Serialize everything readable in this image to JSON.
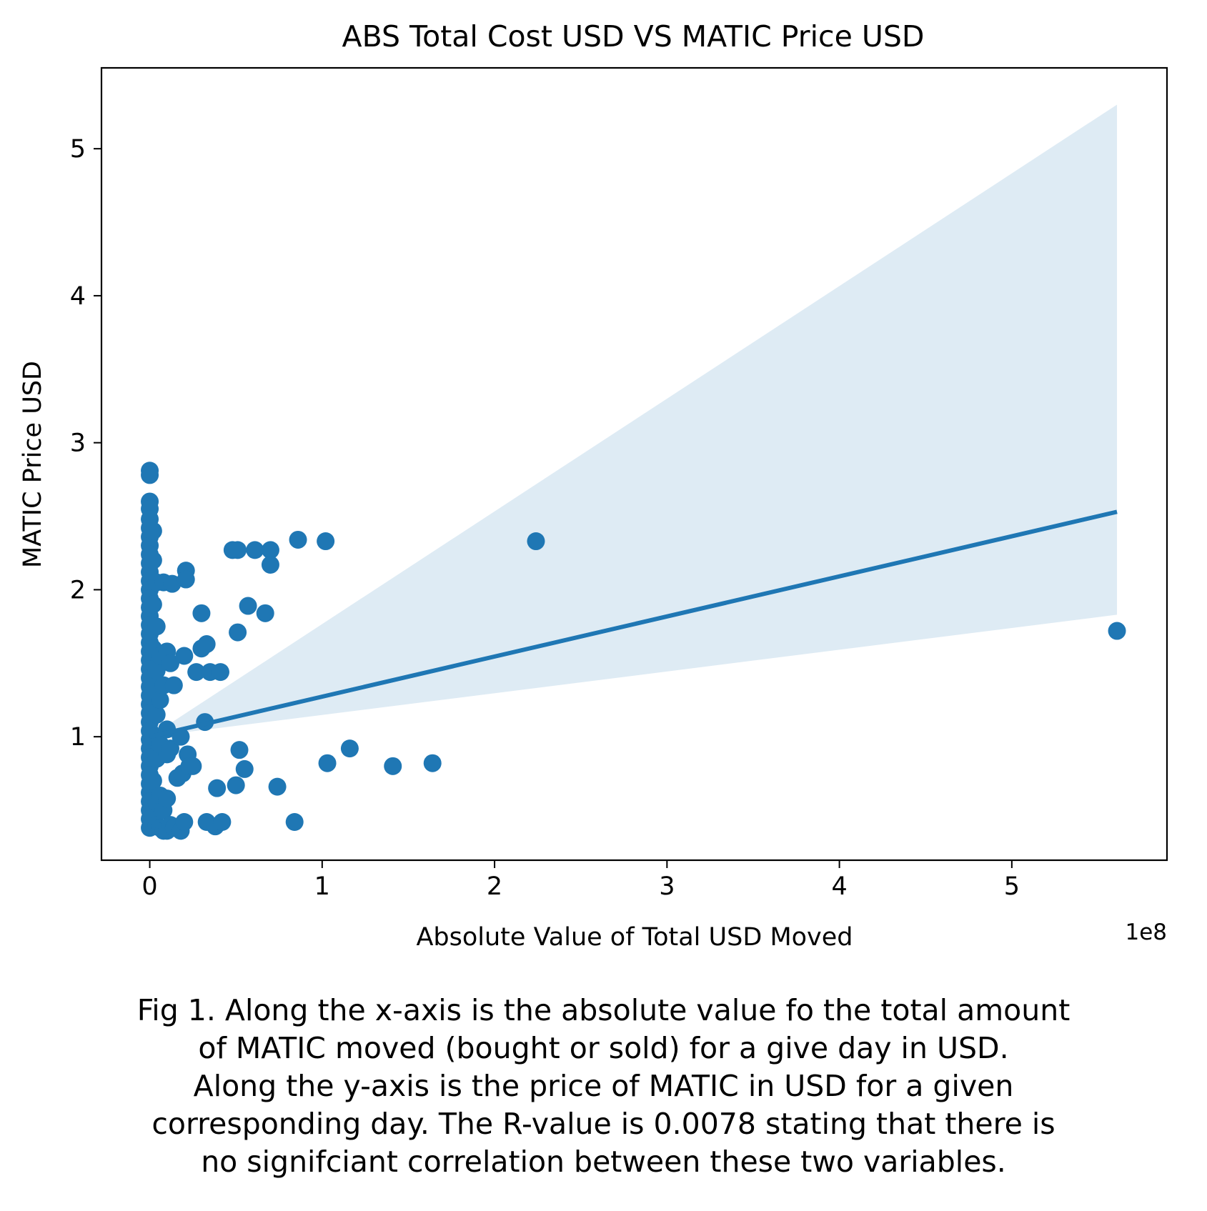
{
  "chart_data": {
    "type": "scatter",
    "title": "ABS Total Cost USD VS MATIC Price USD",
    "xlabel": "Absolute Value of Total USD Moved",
    "ylabel": "MATIC Price USD",
    "x_offset_label": "1e8",
    "x_scale": 100000000,
    "xlim": [
      -0.28,
      5.9
    ],
    "ylim": [
      0.16,
      5.55
    ],
    "x_ticks": [
      0,
      1,
      2,
      3,
      4,
      5
    ],
    "x_tick_labels": [
      "0",
      "1",
      "2",
      "3",
      "4",
      "5"
    ],
    "y_ticks": [
      1,
      2,
      3,
      4,
      5
    ],
    "y_tick_labels": [
      "1",
      "2",
      "3",
      "4",
      "5"
    ],
    "grid": false,
    "legend": "none",
    "colors": {
      "points": "#1f77b4",
      "line": "#1f77b4",
      "band": "#1f77b4"
    },
    "points": [
      {
        "x": 0.0,
        "y": 2.81
      },
      {
        "x": 0.0,
        "y": 2.78
      },
      {
        "x": 0.0,
        "y": 2.6
      },
      {
        "x": 0.0,
        "y": 2.55
      },
      {
        "x": 0.0,
        "y": 2.48
      },
      {
        "x": 0.0,
        "y": 2.42
      },
      {
        "x": 0.0,
        "y": 2.36
      },
      {
        "x": 0.0,
        "y": 2.3
      },
      {
        "x": 0.0,
        "y": 2.24
      },
      {
        "x": 0.0,
        "y": 2.18
      },
      {
        "x": 0.0,
        "y": 2.12
      },
      {
        "x": 0.0,
        "y": 2.06
      },
      {
        "x": 0.0,
        "y": 2.0
      },
      {
        "x": 0.0,
        "y": 1.94
      },
      {
        "x": 0.0,
        "y": 1.88
      },
      {
        "x": 0.0,
        "y": 1.82
      },
      {
        "x": 0.0,
        "y": 1.76
      },
      {
        "x": 0.0,
        "y": 1.7
      },
      {
        "x": 0.0,
        "y": 1.64
      },
      {
        "x": 0.0,
        "y": 1.58
      },
      {
        "x": 0.0,
        "y": 1.52
      },
      {
        "x": 0.0,
        "y": 1.46
      },
      {
        "x": 0.0,
        "y": 1.4
      },
      {
        "x": 0.0,
        "y": 1.34
      },
      {
        "x": 0.0,
        "y": 1.28
      },
      {
        "x": 0.0,
        "y": 1.22
      },
      {
        "x": 0.0,
        "y": 1.16
      },
      {
        "x": 0.0,
        "y": 1.1
      },
      {
        "x": 0.0,
        "y": 1.04
      },
      {
        "x": 0.0,
        "y": 0.98
      },
      {
        "x": 0.0,
        "y": 0.92
      },
      {
        "x": 0.0,
        "y": 0.86
      },
      {
        "x": 0.0,
        "y": 0.8
      },
      {
        "x": 0.0,
        "y": 0.74
      },
      {
        "x": 0.0,
        "y": 0.68
      },
      {
        "x": 0.0,
        "y": 0.62
      },
      {
        "x": 0.0,
        "y": 0.56
      },
      {
        "x": 0.0,
        "y": 0.5
      },
      {
        "x": 0.0,
        "y": 0.44
      },
      {
        "x": 0.0,
        "y": 0.38
      },
      {
        "x": 0.02,
        "y": 2.4
      },
      {
        "x": 0.02,
        "y": 2.2
      },
      {
        "x": 0.02,
        "y": 1.9
      },
      {
        "x": 0.02,
        "y": 1.6
      },
      {
        "x": 0.02,
        "y": 1.3
      },
      {
        "x": 0.02,
        "y": 1.0
      },
      {
        "x": 0.02,
        "y": 0.7
      },
      {
        "x": 0.02,
        "y": 0.45
      },
      {
        "x": 0.04,
        "y": 2.05
      },
      {
        "x": 0.04,
        "y": 1.75
      },
      {
        "x": 0.04,
        "y": 1.45
      },
      {
        "x": 0.04,
        "y": 1.15
      },
      {
        "x": 0.04,
        "y": 0.85
      },
      {
        "x": 0.04,
        "y": 0.55
      },
      {
        "x": 0.04,
        "y": 0.4
      },
      {
        "x": 0.06,
        "y": 1.55
      },
      {
        "x": 0.06,
        "y": 1.25
      },
      {
        "x": 0.06,
        "y": 0.95
      },
      {
        "x": 0.06,
        "y": 0.6
      },
      {
        "x": 0.06,
        "y": 0.38
      },
      {
        "x": 0.08,
        "y": 2.05
      },
      {
        "x": 0.08,
        "y": 1.35
      },
      {
        "x": 0.08,
        "y": 0.5
      },
      {
        "x": 0.08,
        "y": 0.36
      },
      {
        "x": 0.1,
        "y": 1.58
      },
      {
        "x": 0.1,
        "y": 1.05
      },
      {
        "x": 0.1,
        "y": 0.88
      },
      {
        "x": 0.1,
        "y": 0.58
      },
      {
        "x": 0.1,
        "y": 0.36
      },
      {
        "x": 0.12,
        "y": 1.5
      },
      {
        "x": 0.12,
        "y": 0.92
      },
      {
        "x": 0.12,
        "y": 0.4
      },
      {
        "x": 0.14,
        "y": 1.35
      },
      {
        "x": 0.14,
        "y": 0.38
      },
      {
        "x": 0.13,
        "y": 2.04
      },
      {
        "x": 0.16,
        "y": 0.72
      },
      {
        "x": 0.18,
        "y": 1.0
      },
      {
        "x": 0.18,
        "y": 0.36
      },
      {
        "x": 0.19,
        "y": 0.75
      },
      {
        "x": 0.2,
        "y": 1.55
      },
      {
        "x": 0.2,
        "y": 0.42
      },
      {
        "x": 0.21,
        "y": 2.13
      },
      {
        "x": 0.21,
        "y": 2.07
      },
      {
        "x": 0.22,
        "y": 0.88
      },
      {
        "x": 0.23,
        "y": 0.8
      },
      {
        "x": 0.25,
        "y": 0.8
      },
      {
        "x": 0.27,
        "y": 1.44
      },
      {
        "x": 0.3,
        "y": 1.84
      },
      {
        "x": 0.3,
        "y": 1.6
      },
      {
        "x": 0.33,
        "y": 1.63
      },
      {
        "x": 0.32,
        "y": 1.1
      },
      {
        "x": 0.33,
        "y": 0.42
      },
      {
        "x": 0.35,
        "y": 1.44
      },
      {
        "x": 0.38,
        "y": 0.39
      },
      {
        "x": 0.39,
        "y": 0.65
      },
      {
        "x": 0.41,
        "y": 1.44
      },
      {
        "x": 0.42,
        "y": 0.42
      },
      {
        "x": 0.48,
        "y": 2.27
      },
      {
        "x": 0.51,
        "y": 2.27
      },
      {
        "x": 0.51,
        "y": 1.71
      },
      {
        "x": 0.5,
        "y": 0.67
      },
      {
        "x": 0.52,
        "y": 0.91
      },
      {
        "x": 0.55,
        "y": 0.78
      },
      {
        "x": 0.57,
        "y": 1.89
      },
      {
        "x": 0.61,
        "y": 2.27
      },
      {
        "x": 0.67,
        "y": 1.84
      },
      {
        "x": 0.7,
        "y": 2.27
      },
      {
        "x": 0.7,
        "y": 2.17
      },
      {
        "x": 0.74,
        "y": 0.66
      },
      {
        "x": 0.84,
        "y": 0.42
      },
      {
        "x": 0.86,
        "y": 2.34
      },
      {
        "x": 1.02,
        "y": 2.33
      },
      {
        "x": 1.03,
        "y": 0.82
      },
      {
        "x": 1.16,
        "y": 0.92
      },
      {
        "x": 1.41,
        "y": 0.8
      },
      {
        "x": 1.64,
        "y": 0.82
      },
      {
        "x": 2.24,
        "y": 2.33
      },
      {
        "x": 5.61,
        "y": 1.72
      }
    ],
    "regression_line": {
      "x": [
        0.0,
        5.61
      ],
      "y": [
        1.0,
        2.53
      ]
    },
    "confidence_band": {
      "x": [
        0.0,
        5.61
      ],
      "upper": [
        1.0,
        5.3
      ],
      "lower": [
        1.0,
        1.83
      ]
    }
  },
  "caption": {
    "lines": [
      "Fig 1. Along the x-axis is the absolute value fo the total amount",
      "of MATIC moved (bought or sold) for a give day in USD.",
      "Along the y-axis is the price of MATIC in USD for a given",
      "corresponding day. The R-value is 0.0078 stating that there is",
      "no signifciant correlation between these two variables."
    ]
  }
}
